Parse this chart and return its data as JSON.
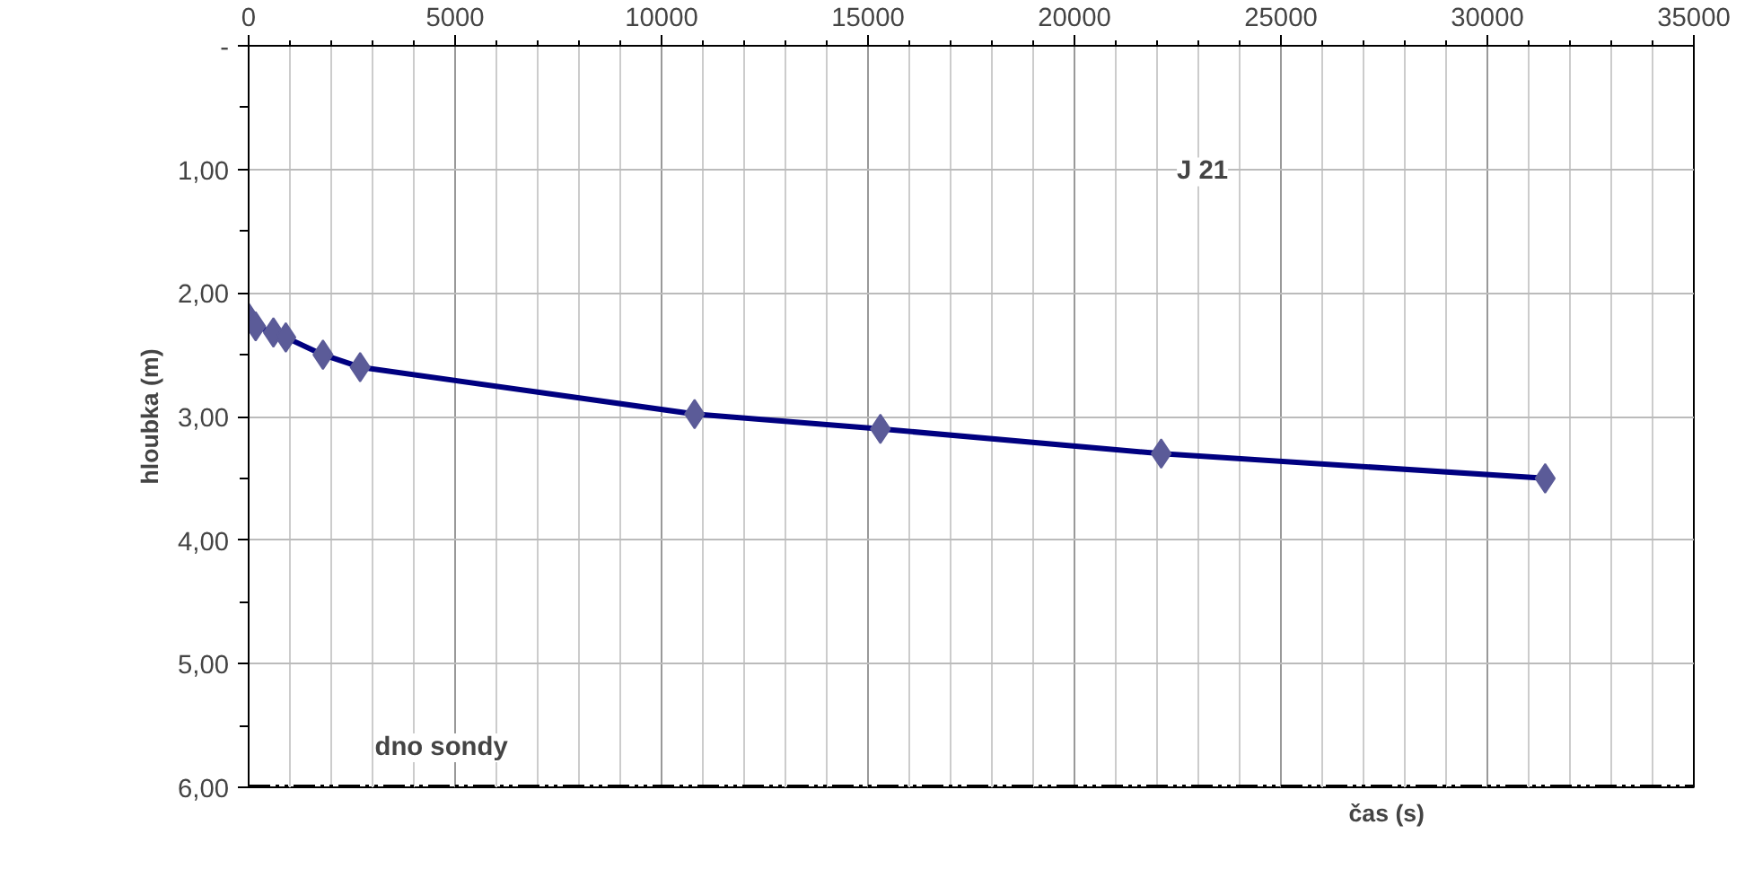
{
  "chart_data": {
    "type": "line",
    "title": "J 21",
    "xlabel": "čas (s)",
    "ylabel": "hloubka (m)",
    "x": [
      0,
      170,
      600,
      900,
      1800,
      2700,
      10800,
      15300,
      22100,
      31400
    ],
    "series": [
      {
        "color": "#000080",
        "values": [
          2.2,
          2.27,
          2.32,
          2.36,
          2.5,
          2.6,
          2.98,
          3.1,
          3.3,
          3.5
        ]
      }
    ],
    "marker": "diamond",
    "line_style": "solid",
    "xlim": [
      0,
      35000
    ],
    "xticks": [
      0,
      5000,
      10000,
      15000,
      20000,
      25000,
      30000,
      35000
    ],
    "ylim": [
      6,
      0
    ],
    "yticks": [
      {
        "value": 0,
        "label": "-"
      },
      {
        "value": 1,
        "label": "1,00"
      },
      {
        "value": 2,
        "label": "2,00"
      },
      {
        "value": 3,
        "label": "3,00"
      },
      {
        "value": 4,
        "label": "4,00"
      },
      {
        "value": 5,
        "label": "5,00"
      },
      {
        "value": 6,
        "label": "6,00"
      }
    ],
    "ref_lines": [
      {
        "axis": "y",
        "value": 6,
        "label": "dno sondy",
        "color": "#000000",
        "line_style": "dashed"
      }
    ],
    "grid": true
  }
}
